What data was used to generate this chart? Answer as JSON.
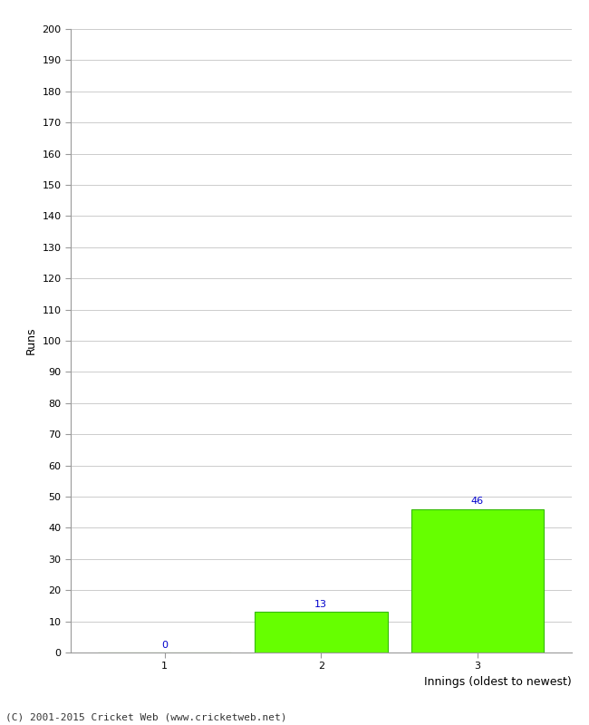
{
  "categories": [
    1,
    2,
    3
  ],
  "values": [
    0,
    13,
    46
  ],
  "bar_color": "#66ff00",
  "bar_edge_color": "#33bb00",
  "xlabel": "Innings (oldest to newest)",
  "ylabel": "Runs",
  "ylim": [
    0,
    200
  ],
  "yticks": [
    0,
    10,
    20,
    30,
    40,
    50,
    60,
    70,
    80,
    90,
    100,
    110,
    120,
    130,
    140,
    150,
    160,
    170,
    180,
    190,
    200
  ],
  "label_color": "#0000cc",
  "footer": "(C) 2001-2015 Cricket Web (www.cricketweb.net)",
  "background_color": "#ffffff",
  "grid_color": "#cccccc",
  "label_fontsize": 8,
  "axis_tick_fontsize": 8,
  "axis_label_fontsize": 9,
  "footer_fontsize": 8,
  "bar_width": 0.85
}
